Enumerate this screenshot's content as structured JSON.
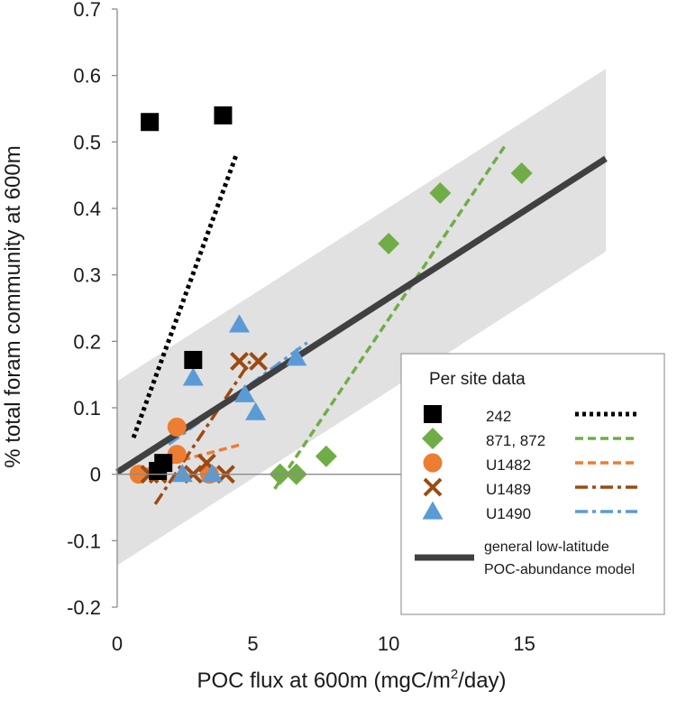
{
  "chart_data": {
    "type": "scatter",
    "xlabel_parts": [
      "POC flux at 600m (mgC/m",
      "2",
      "/day)"
    ],
    "ylabel": "% total foram community at 600m",
    "xlim": [
      0,
      18
    ],
    "ylim": [
      -0.2,
      0.7
    ],
    "xticks": [
      "0",
      "5",
      "10",
      "15"
    ],
    "xtick_values": [
      0,
      5,
      10,
      15
    ],
    "yticks": [
      "-0.2",
      "-0.1",
      "0",
      "0.1",
      "0.2",
      "0.3",
      "0.4",
      "0.5",
      "0.6",
      "0.7"
    ],
    "ytick_values": [
      -0.2,
      -0.1,
      0,
      0.1,
      0.2,
      0.3,
      0.4,
      0.5,
      0.6,
      0.7
    ],
    "legend_title": "Per site data",
    "legend_placement": "bottom-right",
    "series": [
      {
        "name": "242",
        "marker": "square",
        "color": "#000000",
        "line_color": "#000000",
        "line_style": "dotted",
        "points": [
          [
            1.2,
            0.53
          ],
          [
            3.9,
            0.54
          ],
          [
            2.8,
            0.172
          ],
          [
            1.7,
            0.017
          ],
          [
            1.5,
            0.005
          ]
        ],
        "trend": [
          [
            0.6,
            0.055
          ],
          [
            4.4,
            0.482
          ]
        ]
      },
      {
        "name": "871, 872",
        "marker": "diamond",
        "color": "#70AD47",
        "line_color": "#70AD47",
        "line_style": "dashed",
        "points": [
          [
            6.0,
            0.0
          ],
          [
            6.6,
            0.0
          ],
          [
            7.7,
            0.027
          ],
          [
            10.0,
            0.347
          ],
          [
            11.9,
            0.423
          ],
          [
            14.9,
            0.453
          ]
        ],
        "trend": [
          [
            5.8,
            -0.022
          ],
          [
            14.3,
            0.495
          ]
        ]
      },
      {
        "name": "U1482",
        "marker": "circle",
        "color": "#ED7D31",
        "line_color": "#ED7D31",
        "line_style": "dashed",
        "points": [
          [
            0.8,
            0.0
          ],
          [
            2.2,
            0.071
          ],
          [
            2.2,
            0.03
          ],
          [
            3.4,
            0.0
          ]
        ],
        "trend": [
          [
            0.6,
            0.002
          ],
          [
            4.5,
            0.044
          ]
        ]
      },
      {
        "name": "U1489",
        "marker": "x",
        "color": "#9C4A12",
        "line_color": "#9C4A12",
        "line_style": "dashdot",
        "points": [
          [
            1.2,
            0.0
          ],
          [
            1.5,
            0.0
          ],
          [
            2.8,
            0.0
          ],
          [
            3.3,
            0.017
          ],
          [
            4.0,
            0.0
          ],
          [
            4.5,
            0.17
          ],
          [
            5.2,
            0.17
          ]
        ],
        "trend": [
          [
            1.4,
            -0.045
          ],
          [
            4.9,
            0.17
          ]
        ]
      },
      {
        "name": "U1490",
        "marker": "triangle",
        "color": "#5B9BD5",
        "line_color": "#5B9BD5",
        "line_style": "dashdot",
        "points": [
          [
            2.4,
            0.0
          ],
          [
            2.8,
            0.145
          ],
          [
            3.5,
            0.0
          ],
          [
            4.5,
            0.225
          ],
          [
            4.7,
            0.12
          ],
          [
            5.1,
            0.093
          ],
          [
            6.6,
            0.175
          ]
        ],
        "trend": [
          [
            1.9,
            0.045
          ],
          [
            7.0,
            0.198
          ]
        ]
      }
    ],
    "model": {
      "label_lines": [
        "general low-latitude",
        "POC-abundance model"
      ],
      "color": "#404040",
      "band_color": "#E1E1E1",
      "line": [
        [
          0,
          0.003
        ],
        [
          18,
          0.475
        ]
      ],
      "band_upper": [
        [
          0,
          0.14
        ],
        [
          18,
          0.61
        ]
      ],
      "band_lower": [
        [
          0,
          -0.137
        ],
        [
          18,
          0.335
        ]
      ]
    }
  }
}
